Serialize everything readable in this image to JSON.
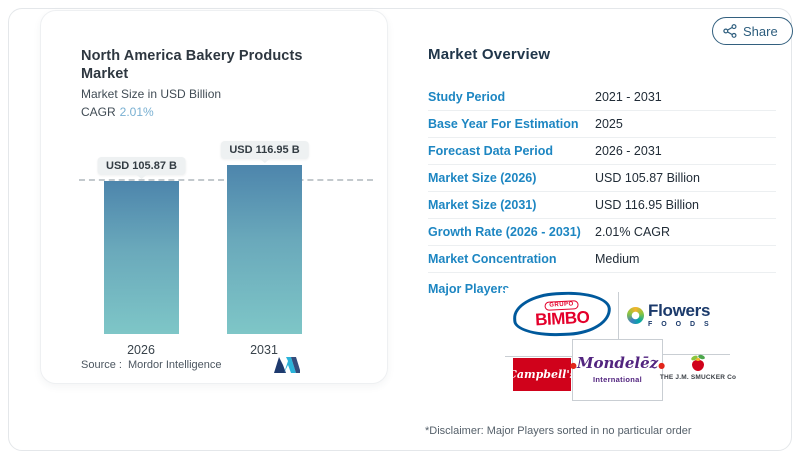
{
  "share": {
    "label": "Share"
  },
  "chart_card": {
    "title": "North America Bakery Products Market",
    "subtitle": "Market Size in USD Billion",
    "cagr_label": "CAGR",
    "cagr_value": "2.01%",
    "source_label": "Source :",
    "source_value": "Mordor Intelligence"
  },
  "chart_data": {
    "type": "bar",
    "title": "North America Bakery Products Market",
    "ylabel": "Market Size in USD Billion",
    "unit": "USD Billion",
    "categories": [
      "2026",
      "2031"
    ],
    "values": [
      105.87,
      116.95
    ],
    "value_labels": [
      "USD 105.87 B",
      "USD 116.95 B"
    ],
    "cagr": "2.01%",
    "reference_line": 105.87,
    "bar_gradient_top": "#4d85ac",
    "bar_gradient_bottom": "#7ec6c7",
    "grid": false,
    "legend": "none"
  },
  "overview": {
    "heading": "Market Overview",
    "rows": [
      {
        "label": "Study Period",
        "value": "2021 - 2031"
      },
      {
        "label": "Base Year For Estimation",
        "value": "2025"
      },
      {
        "label": "Forecast Data Period",
        "value": "2026 - 2031"
      },
      {
        "label": "Market Size (2026)",
        "value": "USD 105.87 Billion"
      },
      {
        "label": "Market Size (2031)",
        "value": "USD 116.95 Billion"
      },
      {
        "label": "Growth Rate (2026 - 2031)",
        "value": "2.01% CAGR"
      },
      {
        "label": "Market Concentration",
        "value": "Medium"
      }
    ],
    "major_players_label": "Major Players",
    "players": {
      "bimbo_grupo": "GRUPO",
      "bimbo_name": "BIMBO",
      "flowers_name": "Flowers",
      "flowers_foods": "F O O D S",
      "campbells": "Campbell's",
      "mondelez_name": "Mondelēz",
      "mondelez_intl": "International",
      "smucker": "THE J.M. SMUCKER Co"
    },
    "disclaimer": "*Disclaimer: Major Players sorted in no particular order"
  },
  "colors": {
    "accent_blue": "#1d86c2",
    "navy": "#20364a",
    "cagr_light_blue": "#79b0d2",
    "bar_top": "#4d85ac",
    "bar_bottom": "#7ec6c7",
    "pill_bg": "#eef1f2"
  }
}
